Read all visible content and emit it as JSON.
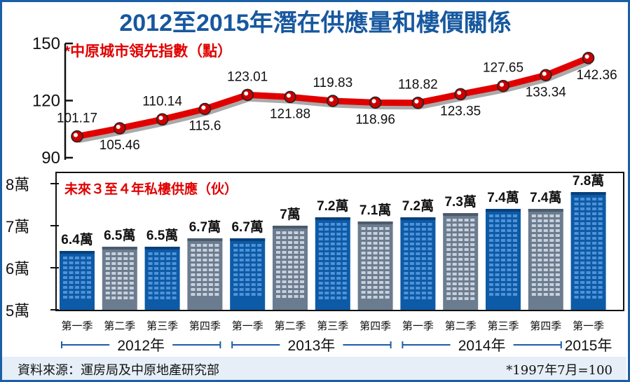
{
  "chart_data": [
    {
      "type": "line",
      "title": "2012至2015年潛在供應量和樓價關係",
      "series_label": "*中原城市領先指數（點）",
      "ylim": [
        90,
        150
      ],
      "yticks": [
        "150",
        "120",
        "90"
      ],
      "categories": [
        "2012Q1",
        "2012Q2",
        "2012Q3",
        "2012Q4",
        "2013Q1",
        "2013Q2",
        "2013Q3",
        "2013Q4",
        "2014Q1",
        "2014Q2",
        "2014Q3",
        "2014Q4",
        "2015Q1"
      ],
      "values": [
        101.17,
        105.46,
        110.14,
        115.6,
        123.01,
        121.88,
        119.83,
        118.96,
        118.82,
        123.35,
        127.65,
        133.34,
        142.36
      ],
      "labels": [
        "101.17",
        "105.46",
        "110.14",
        "115.6",
        "123.01",
        "121.88",
        "119.83",
        "118.96",
        "118.82",
        "123.35",
        "127.65",
        "133.34",
        "142.36"
      ],
      "color": "#e10000"
    },
    {
      "type": "bar",
      "series_label": "未來３至４年私樓供應（伙）",
      "ylim": [
        5,
        8
      ],
      "yticks": [
        "8萬",
        "7萬",
        "6萬",
        "5萬"
      ],
      "values": [
        6.4,
        6.5,
        6.5,
        6.7,
        6.7,
        7.0,
        7.2,
        7.1,
        7.2,
        7.3,
        7.4,
        7.4,
        7.8
      ],
      "labels": [
        "6.4萬",
        "6.5萬",
        "6.5萬",
        "6.7萬",
        "6.7萬",
        "7萬",
        "7.2萬",
        "7.1萬",
        "7.2萬",
        "7.3萬",
        "7.4萬",
        "7.4萬",
        "7.8萬"
      ],
      "quarters": [
        "第一季",
        "第二季",
        "第三季",
        "第四季",
        "第一季",
        "第二季",
        "第三季",
        "第四季",
        "第一季",
        "第二季",
        "第三季",
        "第四季",
        "第一季"
      ],
      "years": [
        "2012年",
        "2013年",
        "2014年",
        "2015年"
      ],
      "colors": {
        "blue": "#0d5aa7",
        "gray": "#6b7c90"
      }
    }
  ],
  "footer": {
    "source": "資料來源：運房局及中原地產研究部",
    "note": "*1997年7月=100"
  }
}
